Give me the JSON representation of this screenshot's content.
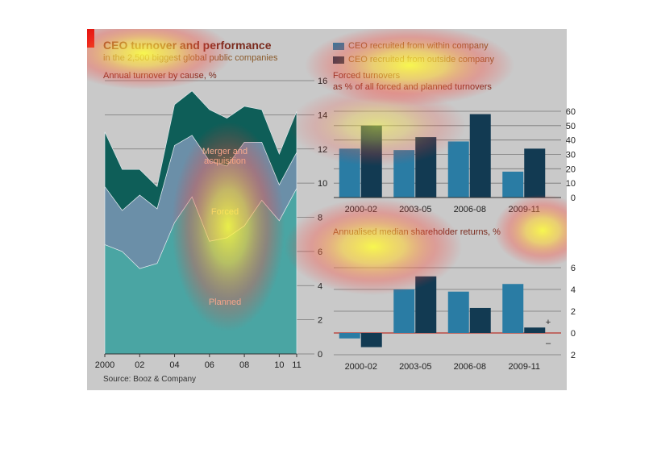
{
  "header": {
    "title": "CEO turnover and performance",
    "subtitle": "in the 2,500 biggest global public companies",
    "source": "Source: Booz & Company"
  },
  "legend": {
    "items": [
      {
        "label": "CEO recruited from within company",
        "color": "#2a7ca4"
      },
      {
        "label": "CEO recruited from outside company",
        "color": "#123a52"
      }
    ]
  },
  "colors": {
    "panel": "#c9c9c9",
    "brand_red": "#e3120b",
    "planned": "#4aa5a3",
    "forced": "#6b8fa8",
    "merger": "#0e5e58"
  },
  "chart_data": [
    {
      "type": "area",
      "title": "Annual turnover by cause, %",
      "x_tick_labels": [
        "2000",
        "02",
        "04",
        "06",
        "08",
        "10",
        "11"
      ],
      "x": [
        2000,
        2001,
        2002,
        2003,
        2004,
        2005,
        2006,
        2007,
        2008,
        2009,
        2010,
        2011
      ],
      "ylim": [
        0,
        16
      ],
      "y_ticks": [
        0,
        2,
        4,
        6,
        8,
        10,
        12,
        14,
        16
      ],
      "stacked": true,
      "series": [
        {
          "name": "Planned",
          "values": [
            6.4,
            6.0,
            5.0,
            5.3,
            7.7,
            9.2,
            6.6,
            6.8,
            7.5,
            9.0,
            7.8,
            9.7
          ]
        },
        {
          "name": "Forced",
          "values": [
            3.4,
            2.4,
            4.3,
            3.2,
            4.5,
            3.6,
            4.7,
            4.2,
            4.9,
            3.4,
            2.1,
            2.1
          ]
        },
        {
          "name": "Merger and acquisition",
          "values": [
            3.2,
            2.4,
            1.5,
            1.3,
            2.4,
            2.6,
            3.0,
            2.8,
            2.1,
            1.9,
            1.8,
            2.4
          ]
        }
      ],
      "labels": [
        "Merger and",
        "acquisition",
        "Forced",
        "Planned"
      ],
      "grid": true
    },
    {
      "type": "bar",
      "title": "Forced turnovers",
      "subtitle": "as % of all forced and planned turnovers",
      "categories": [
        "2000-02",
        "2003-05",
        "2006-08",
        "2009-11"
      ],
      "series": [
        {
          "name": "CEO recruited from within company",
          "values": [
            34,
            33,
            39,
            18
          ]
        },
        {
          "name": "CEO recruited from outside company",
          "values": [
            50,
            42,
            58,
            34
          ]
        }
      ],
      "ylim": [
        0,
        60
      ],
      "y_ticks": [
        0,
        10,
        20,
        30,
        40,
        50,
        60
      ],
      "grid": true
    },
    {
      "type": "bar",
      "title": "Annualised median shareholder returns, %",
      "categories": [
        "2000-02",
        "2003-05",
        "2006-08",
        "2009-11"
      ],
      "series": [
        {
          "name": "CEO recruited from within company",
          "values": [
            -0.5,
            4.0,
            3.8,
            4.5
          ]
        },
        {
          "name": "CEO recruited from outside company",
          "values": [
            -1.3,
            5.2,
            2.3,
            0.5
          ]
        }
      ],
      "ylim": [
        -2,
        6
      ],
      "y_ticks": [
        -2,
        0,
        2,
        4,
        6
      ],
      "y_tick_labels": [
        "2",
        "0",
        "2",
        "4",
        "6"
      ],
      "sign_labels": [
        "+",
        "–"
      ],
      "grid": true
    }
  ]
}
